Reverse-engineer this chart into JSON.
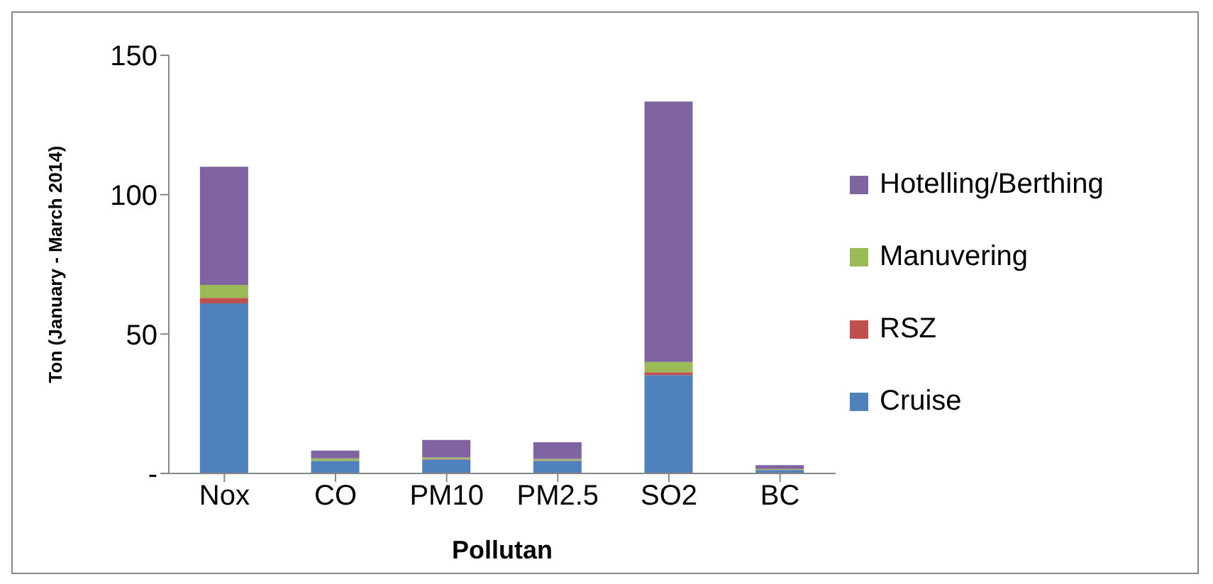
{
  "chart_data": {
    "type": "bar",
    "stacked": true,
    "xlabel": "Pollutan",
    "ylabel": "Ton (January - March 2014)",
    "categories": [
      "Nox",
      "CO",
      "PM10",
      "PM2.5",
      "SO2",
      "BC"
    ],
    "series": [
      {
        "name": "Cruise",
        "color": "#4f81bd",
        "values": [
          61,
          4.5,
          5,
          4.5,
          35.3,
          1.2
        ]
      },
      {
        "name": "RSZ",
        "color": "#c0504d",
        "values": [
          2,
          null,
          0.2,
          0.2,
          1,
          0.1
        ]
      },
      {
        "name": "Manuvering",
        "color": "#9bbb59",
        "values": [
          4.6,
          0.9,
          0.5,
          0.5,
          3.7,
          0.3
        ]
      },
      {
        "name": "Hotelling/Berthing",
        "color": "#8064a2",
        "values": [
          42.4,
          2.8,
          6.3,
          6,
          93.4,
          1.4
        ]
      }
    ],
    "ylim": [
      0,
      150
    ],
    "yticks": [
      {
        "value": 0,
        "label": "-"
      },
      50,
      100,
      150
    ],
    "grid": false,
    "legend": "right"
  }
}
